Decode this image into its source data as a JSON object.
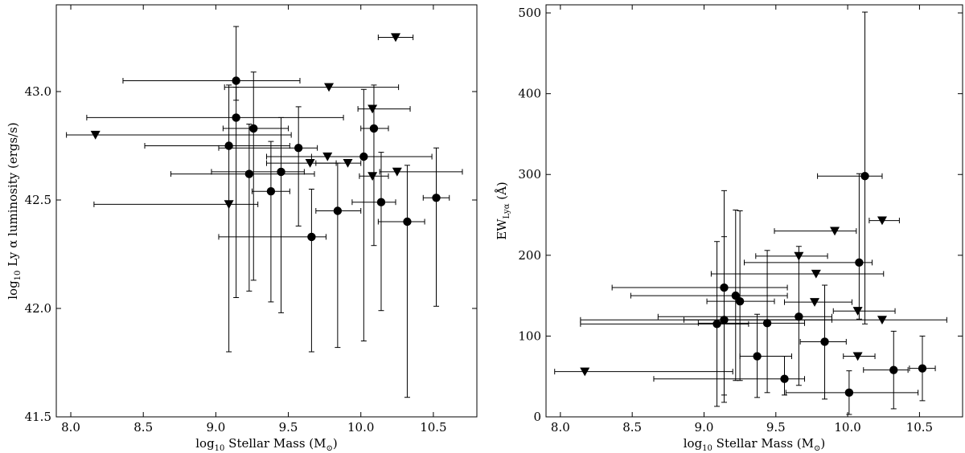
{
  "chart_data": [
    {
      "type": "scatter",
      "xlabel_main": "log",
      "xlabel_sub": "10",
      "xlabel_rest": " Stellar Mass (M",
      "xlabel_sun_sub": "⊙",
      "xlabel_close": ")",
      "ylabel_main": "log",
      "ylabel_sub": "10",
      "ylabel_rest": " Ly α luminosity (ergs/s)",
      "xlim": [
        7.9,
        10.8
      ],
      "ylim": [
        41.5,
        43.4
      ],
      "xticks": [
        "8.0",
        "8.5",
        "9.0",
        "9.5",
        "10.0",
        "10.5"
      ],
      "yticks": [
        "41.5",
        "42.0",
        "42.5",
        "43.0"
      ],
      "detections": [
        {
          "x": 9.14,
          "y": 43.05,
          "xerr": [
            0.78,
            0.44
          ],
          "yerr": [
            0.09,
            0.25
          ]
        },
        {
          "x": 9.14,
          "y": 42.88,
          "xerr": [
            1.03,
            0.74
          ],
          "yerr": [
            0.83,
            0.14
          ]
        },
        {
          "x": 9.26,
          "y": 42.83,
          "xerr": [
            0.21,
            0.24
          ],
          "yerr": [
            0.7,
            0.26
          ]
        },
        {
          "x": 10.09,
          "y": 42.83,
          "xerr": [
            0.09,
            0.1
          ],
          "yerr": [
            0.54,
            0.2
          ]
        },
        {
          "x": 9.09,
          "y": 42.75,
          "xerr": [
            0.58,
            0.42
          ],
          "yerr": [
            0.95,
            0.28
          ]
        },
        {
          "x": 9.57,
          "y": 42.74,
          "xerr": [
            0.55,
            0.13
          ],
          "yerr": [
            0.36,
            0.19
          ]
        },
        {
          "x": 10.02,
          "y": 42.7,
          "xerr": [
            0.36,
            0.47
          ],
          "yerr": [
            0.85,
            0.31
          ]
        },
        {
          "x": 9.45,
          "y": 42.63,
          "xerr": [
            0.48,
            0.16
          ],
          "yerr": [
            0.65,
            0.25
          ]
        },
        {
          "x": 9.23,
          "y": 42.62,
          "xerr": [
            0.54,
            0.45
          ],
          "yerr": [
            0.54,
            0.23
          ]
        },
        {
          "x": 9.38,
          "y": 42.54,
          "xerr": [
            0.13,
            0.13
          ],
          "yerr": [
            0.51,
            0.23
          ]
        },
        {
          "x": 10.14,
          "y": 42.49,
          "xerr": [
            0.2,
            0.1
          ],
          "yerr": [
            0.5,
            0.23
          ]
        },
        {
          "x": 9.84,
          "y": 42.45,
          "xerr": [
            0.15,
            0.16
          ],
          "yerr": [
            0.63,
            0.22
          ]
        },
        {
          "x": 9.66,
          "y": 42.33,
          "xerr": [
            0.64,
            0.1
          ],
          "yerr": [
            0.53,
            0.22
          ]
        },
        {
          "x": 10.32,
          "y": 42.4,
          "xerr": [
            0.2,
            0.12
          ],
          "yerr": [
            0.81,
            0.26
          ]
        },
        {
          "x": 10.52,
          "y": 42.51,
          "xerr": [
            0.09,
            0.09
          ],
          "yerr": [
            0.5,
            0.23
          ]
        }
      ],
      "upper_limits": [
        {
          "x": 10.24,
          "y": 43.25,
          "xerr": [
            0.12,
            0.12
          ]
        },
        {
          "x": 9.78,
          "y": 43.02,
          "xerr": [
            0.72,
            0.48
          ]
        },
        {
          "x": 10.08,
          "y": 42.92,
          "xerr": [
            0.1,
            0.26
          ]
        },
        {
          "x": 8.17,
          "y": 42.8,
          "xerr": [
            0.2,
            1.35
          ]
        },
        {
          "x": 9.77,
          "y": 42.7,
          "xerr": [
            0.42,
            0.24
          ]
        },
        {
          "x": 9.65,
          "y": 42.67,
          "xerr": [
            0.3,
            0.18
          ]
        },
        {
          "x": 9.91,
          "y": 42.67,
          "xerr": [
            0.22,
            0.09
          ]
        },
        {
          "x": 10.25,
          "y": 42.63,
          "xerr": [
            0.12,
            0.45
          ]
        },
        {
          "x": 10.08,
          "y": 42.61,
          "xerr": [
            0.09,
            0.11
          ]
        },
        {
          "x": 9.09,
          "y": 42.48,
          "xerr": [
            0.93,
            0.2
          ]
        }
      ]
    },
    {
      "type": "scatter",
      "xlabel_main": "log",
      "xlabel_sub": "10",
      "xlabel_rest": " Stellar Mass (M",
      "xlabel_sun_sub": "⊙",
      "xlabel_close": ")",
      "ylabel_main": "EW",
      "ylabel_sub": "Lyα",
      "ylabel_rest": " (Å)",
      "xlim": [
        7.9,
        10.8
      ],
      "ylim": [
        0,
        510
      ],
      "xticks": [
        "8.0",
        "8.5",
        "9.0",
        "9.5",
        "10.0",
        "10.5"
      ],
      "yticks": [
        "0",
        "100",
        "200",
        "300",
        "400",
        "500"
      ],
      "detections": [
        {
          "x": 10.12,
          "y": 298,
          "xerr": [
            0.33,
            0.12
          ],
          "yerr": [
            183,
            203
          ]
        },
        {
          "x": 10.08,
          "y": 191,
          "xerr": [
            0.8,
            0.09
          ],
          "yerr": [
            70,
            110
          ]
        },
        {
          "x": 9.14,
          "y": 160,
          "xerr": [
            0.78,
            0.44
          ],
          "yerr": [
            133,
            120
          ]
        },
        {
          "x": 9.22,
          "y": 150,
          "xerr": [
            0.73,
            0.36
          ],
          "yerr": [
            105,
            106
          ]
        },
        {
          "x": 9.25,
          "y": 143,
          "xerr": [
            0.23,
            0.24
          ],
          "yerr": [
            98,
            112
          ]
        },
        {
          "x": 9.66,
          "y": 124,
          "xerr": [
            0.98,
            0.23
          ],
          "yerr": [
            85,
            87
          ]
        },
        {
          "x": 9.14,
          "y": 120,
          "xerr": [
            1.0,
            0.75
          ],
          "yerr": [
            102,
            103
          ]
        },
        {
          "x": 9.44,
          "y": 116,
          "xerr": [
            0.48,
            0.26
          ],
          "yerr": [
            86,
            90
          ]
        },
        {
          "x": 9.09,
          "y": 115,
          "xerr": [
            0.95,
            0.22
          ],
          "yerr": [
            102,
            102
          ]
        },
        {
          "x": 9.84,
          "y": 93,
          "xerr": [
            0.17,
            0.15
          ],
          "yerr": [
            71,
            70
          ]
        },
        {
          "x": 9.37,
          "y": 75,
          "xerr": [
            0.12,
            0.24
          ],
          "yerr": [
            51,
            52
          ]
        },
        {
          "x": 10.52,
          "y": 60,
          "xerr": [
            0.09,
            0.09
          ],
          "yerr": [
            40,
            40
          ]
        },
        {
          "x": 10.32,
          "y": 58,
          "xerr": [
            0.21,
            0.1
          ],
          "yerr": [
            48,
            48
          ]
        },
        {
          "x": 9.56,
          "y": 47,
          "xerr": [
            0.91,
            0.14
          ],
          "yerr": [
            20,
            28
          ]
        },
        {
          "x": 10.01,
          "y": 30,
          "xerr": [
            0.44,
            0.48
          ],
          "yerr": [
            27,
            27
          ]
        }
      ],
      "upper_limits": [
        {
          "x": 10.24,
          "y": 243,
          "xerr": [
            0.09,
            0.12
          ]
        },
        {
          "x": 9.91,
          "y": 230,
          "xerr": [
            0.42,
            0.15
          ]
        },
        {
          "x": 9.66,
          "y": 199,
          "xerr": [
            0.3,
            0.2
          ]
        },
        {
          "x": 9.78,
          "y": 177,
          "xerr": [
            0.73,
            0.47
          ]
        },
        {
          "x": 9.77,
          "y": 142,
          "xerr": [
            0.21,
            0.26
          ]
        },
        {
          "x": 10.07,
          "y": 131,
          "xerr": [
            0.17,
            0.26
          ]
        },
        {
          "x": 10.24,
          "y": 120,
          "xerr": [
            1.38,
            0.45
          ]
        },
        {
          "x": 10.07,
          "y": 75,
          "xerr": [
            0.1,
            0.12
          ]
        },
        {
          "x": 8.17,
          "y": 56,
          "xerr": [
            0.21,
            1.03
          ]
        }
      ]
    }
  ]
}
